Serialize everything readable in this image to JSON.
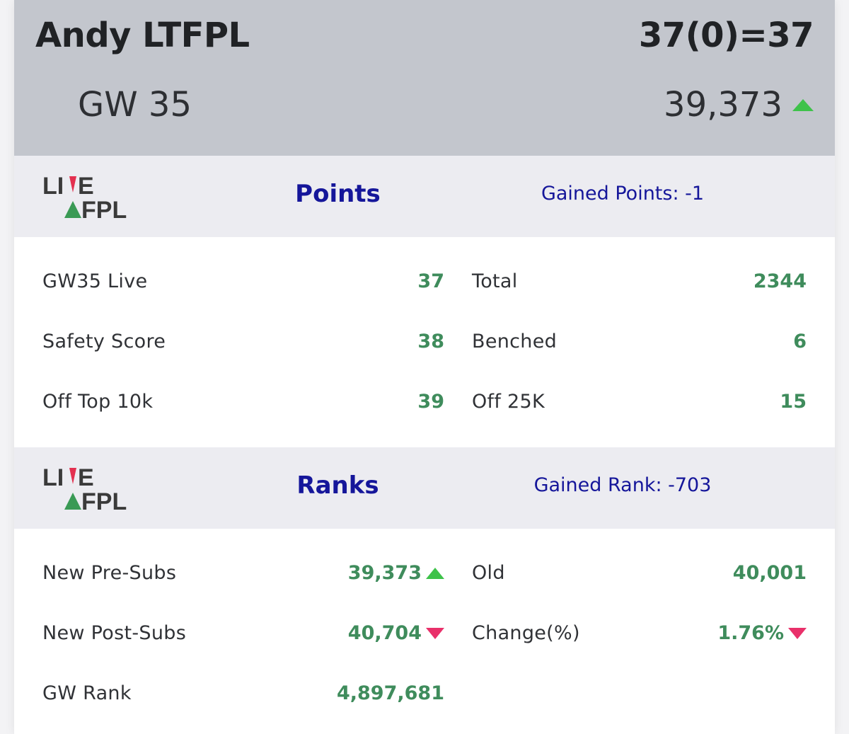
{
  "header": {
    "manager_name": "Andy LTFPL",
    "score_summary": "37(0)=37",
    "gameweek": "GW 35",
    "live_rank": "39,373",
    "rank_trend_icon": "triangle-up-icon"
  },
  "logo": {
    "line1": "LIVE",
    "line2": "FPL"
  },
  "points": {
    "title": "Points",
    "gained": "Gained Points: -1",
    "rows": [
      {
        "left_label": "GW35 Live",
        "left_value": "37",
        "right_label": "Total",
        "right_value": "2344"
      },
      {
        "left_label": "Safety Score",
        "left_value": "38",
        "right_label": "Benched",
        "right_value": "6"
      },
      {
        "left_label": "Off Top 10k",
        "left_value": "39",
        "right_label": "Off 25K",
        "right_value": "15"
      }
    ]
  },
  "ranks": {
    "title": "Ranks",
    "gained": "Gained Rank: -703",
    "rows": [
      {
        "left_label": "New Pre-Subs",
        "left_value": "39,373",
        "left_icon": "triangle-up-icon",
        "right_label": "Old",
        "right_value": "40,001"
      },
      {
        "left_label": "New Post-Subs",
        "left_value": "40,704",
        "left_icon": "triangle-down-icon",
        "right_label": "Change(%)",
        "right_value": "1.76%",
        "right_icon": "triangle-down-icon"
      },
      {
        "left_label": "GW Rank",
        "left_value": "4,897,681"
      }
    ]
  },
  "colors": {
    "header_bg": "#c3c6cd",
    "band_bg": "#ececf1",
    "title_blue": "#15169a",
    "value_green": "#3f8c5c",
    "up_green": "#3ec24a",
    "down_pink": "#e9306a"
  }
}
